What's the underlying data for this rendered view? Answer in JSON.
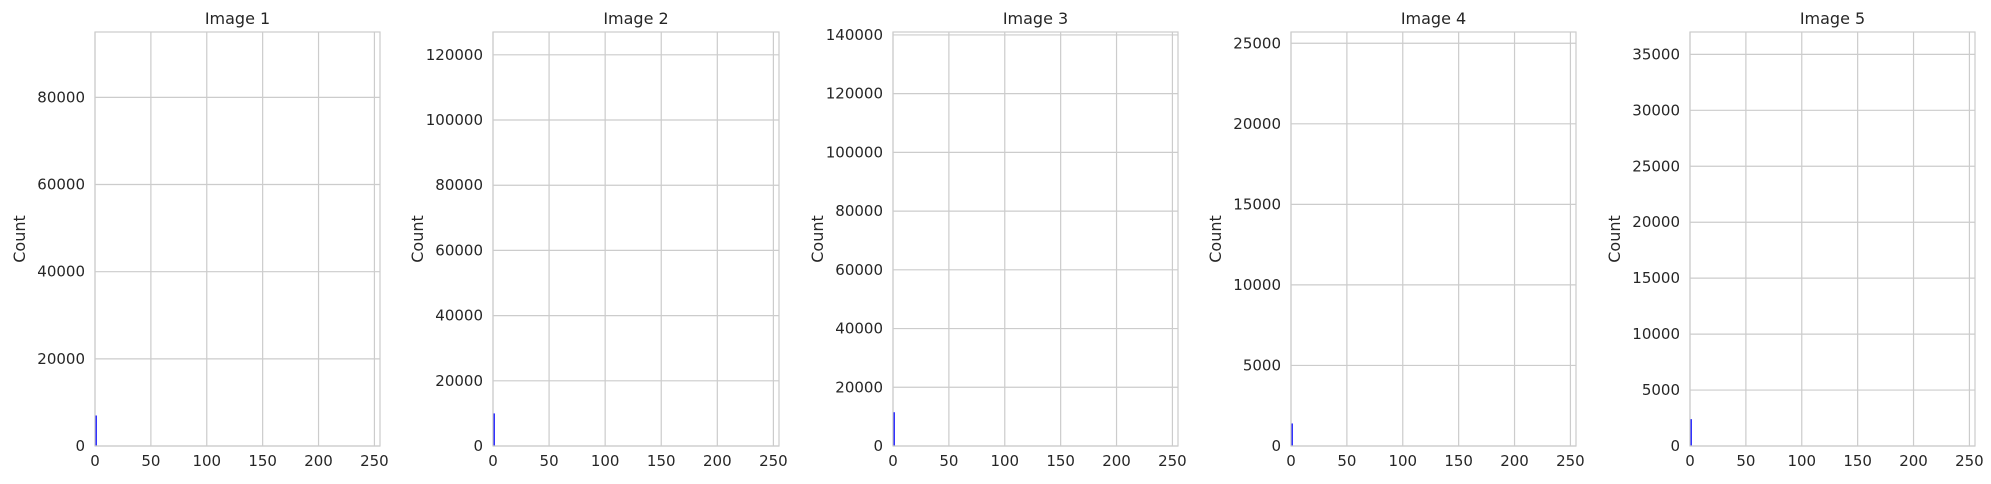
{
  "chart_data": [
    {
      "type": "bar",
      "title": "Image 1",
      "xlabel": "",
      "ylabel": "Count",
      "xlim": [
        0,
        255
      ],
      "ylim": [
        0,
        95000
      ],
      "xticks": [
        0,
        50,
        100,
        150,
        200,
        250
      ],
      "yticks": [
        0,
        20000,
        40000,
        60000,
        80000
      ],
      "grid": true,
      "bar_color": "#0000ff",
      "bins": [
        {
          "x": 0,
          "count": 7000
        }
      ]
    },
    {
      "type": "bar",
      "title": "Image 2",
      "xlabel": "",
      "ylabel": "Count",
      "xlim": [
        0,
        255
      ],
      "ylim": [
        0,
        127000
      ],
      "xticks": [
        0,
        50,
        100,
        150,
        200,
        250
      ],
      "yticks": [
        0,
        20000,
        40000,
        60000,
        80000,
        100000,
        120000
      ],
      "grid": true,
      "bar_color": "#0000ff",
      "bins": [
        {
          "x": 0,
          "count": 10000
        }
      ]
    },
    {
      "type": "bar",
      "title": "Image 3",
      "xlabel": "",
      "ylabel": "Count",
      "xlim": [
        0,
        255
      ],
      "ylim": [
        0,
        141000
      ],
      "xticks": [
        0,
        50,
        100,
        150,
        200,
        250
      ],
      "yticks": [
        0,
        20000,
        40000,
        60000,
        80000,
        100000,
        120000,
        140000
      ],
      "grid": true,
      "bar_color": "#0000ff",
      "bins": [
        {
          "x": 0,
          "count": 11500
        }
      ]
    },
    {
      "type": "bar",
      "title": "Image 4",
      "xlabel": "",
      "ylabel": "Count",
      "xlim": [
        0,
        255
      ],
      "ylim": [
        0,
        25700
      ],
      "xticks": [
        0,
        50,
        100,
        150,
        200,
        250
      ],
      "yticks": [
        0,
        5000,
        10000,
        15000,
        20000,
        25000
      ],
      "grid": true,
      "bar_color": "#0000ff",
      "bins": [
        {
          "x": 0,
          "count": 1400
        }
      ]
    },
    {
      "type": "bar",
      "title": "Image 5",
      "xlabel": "",
      "ylabel": "Count",
      "xlim": [
        0,
        255
      ],
      "ylim": [
        0,
        37000
      ],
      "xticks": [
        0,
        50,
        100,
        150,
        200,
        250
      ],
      "yticks": [
        0,
        5000,
        10000,
        15000,
        20000,
        25000,
        30000,
        35000
      ],
      "grid": true,
      "bar_color": "#0000ff",
      "bins": [
        {
          "x": 0,
          "count": 2400
        }
      ]
    }
  ]
}
